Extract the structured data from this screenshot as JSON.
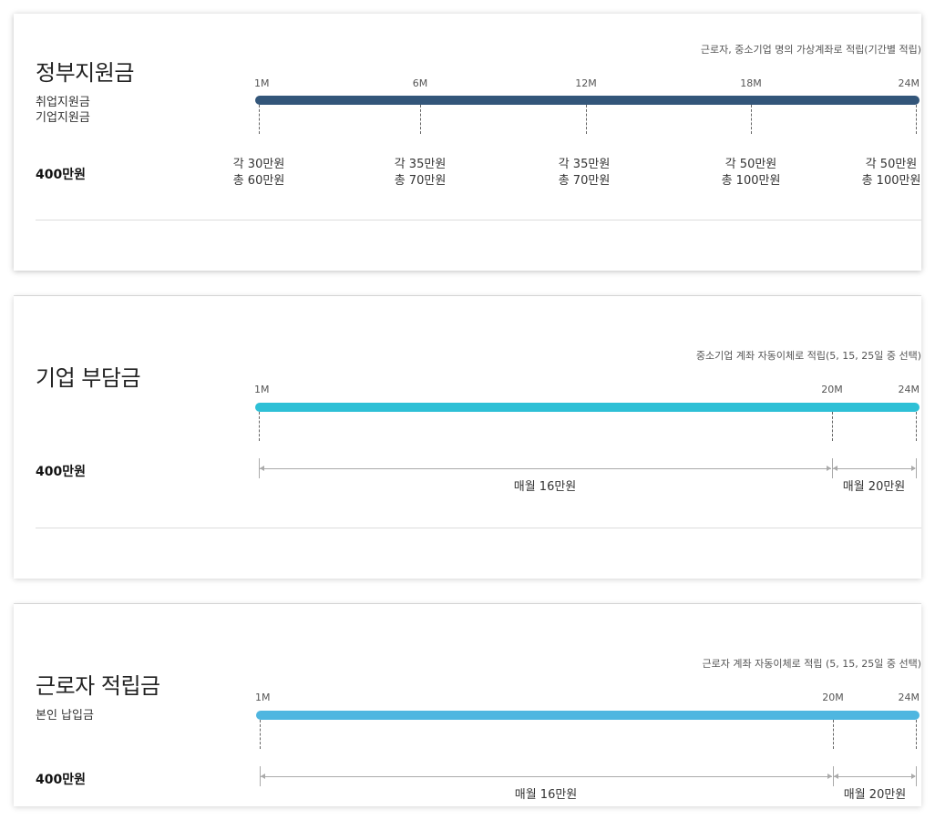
{
  "sections": [
    {
      "title": "정부지원금",
      "subtitles": [
        "취업지원금",
        "기업지원금"
      ],
      "amount": "400만원",
      "note": "근로자, 중소기업 명의 가상계좌로 적립(기간별 적립)",
      "bar_color": "#33567a",
      "ticks": [
        "1M",
        "6M",
        "12M",
        "18M",
        "24M"
      ],
      "payments": [
        {
          "line1": "각 30만원",
          "line2": "총 60만원"
        },
        {
          "line1": "각 35만원",
          "line2": "총 70만원"
        },
        {
          "line1": "각 35만원",
          "line2": "총 70만원"
        },
        {
          "line1": "각 50만원",
          "line2": "총 100만원"
        },
        {
          "line1": "각 50만원",
          "line2": "총 100만원"
        }
      ]
    },
    {
      "title": "기업 부담금",
      "subtitles": [],
      "amount": "400만원",
      "note": "중소기업 계좌 자동이체로 적립(5, 15, 25일 중 선택)",
      "bar_color": "#2ec0d6",
      "ticks": [
        "1M",
        "20M",
        "24M"
      ],
      "spans": [
        "매월 16만원",
        "매월 20만원"
      ]
    },
    {
      "title": "근로자 적립금",
      "subtitles": [
        "본인 납입금"
      ],
      "amount": "400만원",
      "note": "근로자 계좌 자동이체로 적립 (5, 15, 25일 중 선택)",
      "bar_color": "#4fb6e0",
      "ticks": [
        "1M",
        "20M",
        "24M"
      ],
      "spans": [
        "매월 16만원",
        "매월 20만원"
      ]
    }
  ]
}
